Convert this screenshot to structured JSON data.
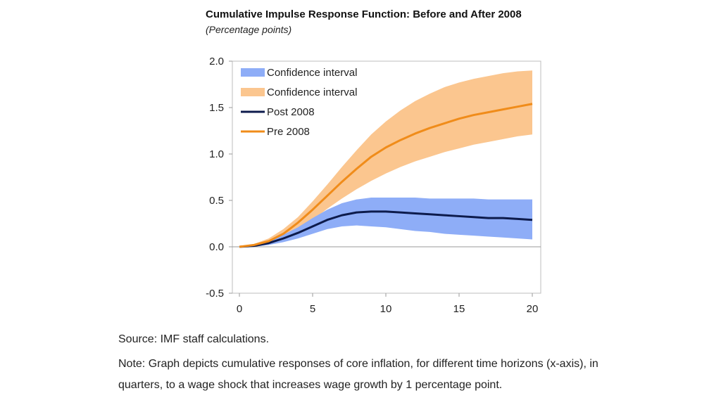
{
  "header": {
    "title": "Cumulative Impulse  Response Function: Before and After 2008",
    "subtitle": "(Percentage points)"
  },
  "footer": {
    "source": "Source: IMF staff calculations.",
    "note": "Note: Graph depicts cumulative responses of core inflation, for different time horizons (x-axis), in quarters, to a wage shock that increases wage growth by 1 percentage point."
  },
  "chart_data": {
    "type": "line",
    "title": "Cumulative Impulse  Response Function: Before and After 2008",
    "subtitle": "(Percentage points)",
    "xlabel": "",
    "ylabel": "",
    "xlim": [
      0,
      20
    ],
    "ylim": [
      -0.5,
      2.0
    ],
    "xticks": [
      0,
      5,
      10,
      15,
      20
    ],
    "yticks": [
      -0.5,
      0.0,
      0.5,
      1.0,
      1.5,
      2.0
    ],
    "ytick_labels": [
      "-0.5",
      "0.0",
      "0.5",
      "1.0",
      "1.5",
      "2.0"
    ],
    "grid": false,
    "legend_placement": "top-left",
    "x": [
      0,
      1,
      2,
      3,
      4,
      5,
      6,
      7,
      8,
      9,
      10,
      11,
      12,
      13,
      14,
      15,
      16,
      17,
      18,
      19,
      20
    ],
    "series": [
      {
        "name": "Post 2008",
        "color": "#0d1b4c",
        "values": [
          0.0,
          0.01,
          0.04,
          0.09,
          0.15,
          0.22,
          0.29,
          0.34,
          0.37,
          0.38,
          0.38,
          0.37,
          0.36,
          0.35,
          0.34,
          0.33,
          0.32,
          0.31,
          0.31,
          0.3,
          0.29
        ],
        "ci_lower": [
          0.0,
          0.0,
          0.02,
          0.05,
          0.09,
          0.14,
          0.19,
          0.22,
          0.23,
          0.22,
          0.21,
          0.19,
          0.17,
          0.16,
          0.14,
          0.13,
          0.12,
          0.11,
          0.1,
          0.09,
          0.08
        ],
        "ci_upper": [
          0.0,
          0.02,
          0.06,
          0.13,
          0.21,
          0.31,
          0.4,
          0.47,
          0.51,
          0.53,
          0.53,
          0.53,
          0.53,
          0.52,
          0.52,
          0.52,
          0.52,
          0.51,
          0.51,
          0.51,
          0.51
        ],
        "ci_color": "#8eadf7"
      },
      {
        "name": "Pre 2008",
        "color": "#f08c1a",
        "values": [
          0.0,
          0.02,
          0.06,
          0.14,
          0.26,
          0.4,
          0.55,
          0.7,
          0.84,
          0.97,
          1.07,
          1.15,
          1.22,
          1.28,
          1.33,
          1.38,
          1.42,
          1.45,
          1.48,
          1.51,
          1.54
        ],
        "ci_lower": [
          0.0,
          0.01,
          0.04,
          0.1,
          0.19,
          0.29,
          0.41,
          0.52,
          0.62,
          0.71,
          0.79,
          0.86,
          0.92,
          0.97,
          1.02,
          1.06,
          1.1,
          1.13,
          1.16,
          1.19,
          1.21
        ],
        "ci_upper": [
          0.0,
          0.03,
          0.09,
          0.19,
          0.32,
          0.49,
          0.67,
          0.86,
          1.04,
          1.21,
          1.35,
          1.47,
          1.57,
          1.65,
          1.72,
          1.77,
          1.81,
          1.84,
          1.87,
          1.89,
          1.9
        ],
        "ci_color": "#fbc68f"
      }
    ],
    "legend": [
      {
        "label": "Confidence interval",
        "kind": "band",
        "color": "#8eadf7"
      },
      {
        "label": "Confidence interval",
        "kind": "band",
        "color": "#fbc68f"
      },
      {
        "label": "Post 2008",
        "kind": "line",
        "color": "#0d1b4c"
      },
      {
        "label": "Pre 2008",
        "kind": "line",
        "color": "#f08c1a"
      }
    ]
  }
}
